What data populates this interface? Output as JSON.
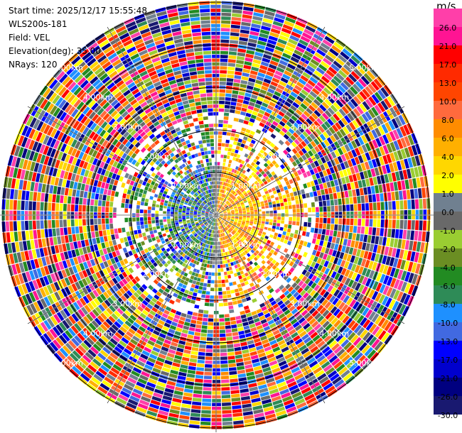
{
  "info": {
    "start_time": "Start time: 2025/12/17 15:55:48",
    "station": "WLS200s-181",
    "field": "Field: VEL",
    "elevation": "Elevation(deg): 35.00",
    "nrays": "NRays: 120"
  },
  "colorbar": {
    "unit": "m/s",
    "ticks": [
      "26.0",
      "21.0",
      "17.0",
      "13.0",
      "10.0",
      "8.0",
      "6.0",
      "4.0",
      "2.0",
      "1.0",
      "0.0",
      "-1.0",
      "-2.0",
      "-4.0",
      "-6.0",
      "-8.0",
      "-10.0",
      "-13.0",
      "-17.0",
      "-21.0",
      "-26.0",
      "-30.0"
    ],
    "colors": [
      "#ff3fa9",
      "#ff1493",
      "#ff0000",
      "#ff2a00",
      "#ff4500",
      "#ff6a3d",
      "#ff8c00",
      "#ffb000",
      "#ffd700",
      "#ffff00",
      "#708090",
      "#696969",
      "#9acd32",
      "#6b8e23",
      "#228b22",
      "#2e8b57",
      "#1e90ff",
      "#4169e1",
      "#0000ff",
      "#0000cd",
      "#000080",
      "#191970"
    ]
  },
  "chart_data": {
    "type": "heatmap",
    "title": "",
    "field": "VEL",
    "nrays": 120,
    "elevation_deg": 35.0,
    "range_unit": "km",
    "range_rings_km": [
      1.0,
      2.0,
      3.0,
      4.0,
      5.0
    ],
    "ring_labels": [
      "1.00km",
      "2.00km",
      "3.00km",
      "4.00km",
      "5.00km"
    ],
    "max_range_km": 5.1,
    "velocity_range": [
      -30.0,
      26.0
    ],
    "description_of_field": {
      "near_field_east": [
        2,
        8
      ],
      "near_field_west": [
        -10,
        -2
      ],
      "far_field": "noise"
    }
  }
}
